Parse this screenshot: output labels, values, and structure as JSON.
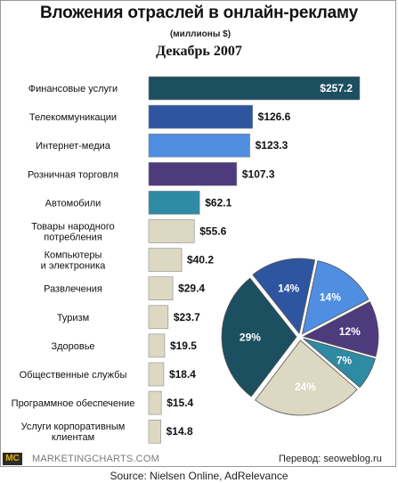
{
  "header": {
    "title": "Вложения отраслей в онлайн-рекламу",
    "subtitle": "(миллионы $)",
    "period": "Декабрь 2007"
  },
  "chart_data": [
    {
      "type": "bar",
      "orientation": "horizontal",
      "value_prefix": "$",
      "categories": [
        [
          "Финансовые услуги"
        ],
        [
          "Телекоммуникации"
        ],
        [
          "Интернет-медиа"
        ],
        [
          "Розничная торговля"
        ],
        [
          "Автомобили"
        ],
        [
          "Товары народного",
          "потребления"
        ],
        [
          "Компьютеры",
          "и электроника"
        ],
        [
          "Развлечения"
        ],
        [
          "Туризм"
        ],
        [
          "Здоровье"
        ],
        [
          "Общественные службы"
        ],
        [
          "Программное обеспечение"
        ],
        [
          "Услуги корпоративным",
          "клиентам"
        ]
      ],
      "values": [
        257.2,
        126.6,
        123.3,
        107.3,
        62.1,
        55.6,
        40.2,
        29.4,
        23.7,
        19.5,
        18.4,
        15.4,
        14.8
      ],
      "value_labels": [
        "$257.2",
        "$126.6",
        "$123.3",
        "$107.3",
        "$62.1",
        "$55.6",
        "$40.2",
        "$29.4",
        "$23.7",
        "$19.5",
        "$18.4",
        "$15.4",
        "$14.8"
      ],
      "colors": [
        "#1c4f5f",
        "#2e55a0",
        "#4f8ee0",
        "#4e3b7e",
        "#2f8aa3",
        "#dcd8c2",
        "#dcd8c2",
        "#dcd8c2",
        "#dcd8c2",
        "#dcd8c2",
        "#dcd8c2",
        "#dcd8c2",
        "#dcd8c2"
      ],
      "xlim": [
        0,
        270
      ],
      "grid": false
    },
    {
      "type": "pie",
      "slices": [
        {
          "label": "14%",
          "value": 14,
          "color": "#4f8ee0"
        },
        {
          "label": "12%",
          "value": 12,
          "color": "#4e3b7e"
        },
        {
          "label": "7%",
          "value": 7,
          "color": "#2f8aa3"
        },
        {
          "label": "24%",
          "value": 24,
          "color": "#dcd8c2"
        },
        {
          "label": "29%",
          "value": 29,
          "color": "#1c4f5f"
        },
        {
          "label": "14%",
          "value": 14,
          "color": "#2e55a0"
        }
      ]
    }
  ],
  "footer": {
    "logo": "MC",
    "brand": "MARKETINGCHARTS.COM",
    "translation": "Перевод: seoweblog.ru",
    "source": "Source: Nielsen Online, AdRelevance"
  }
}
